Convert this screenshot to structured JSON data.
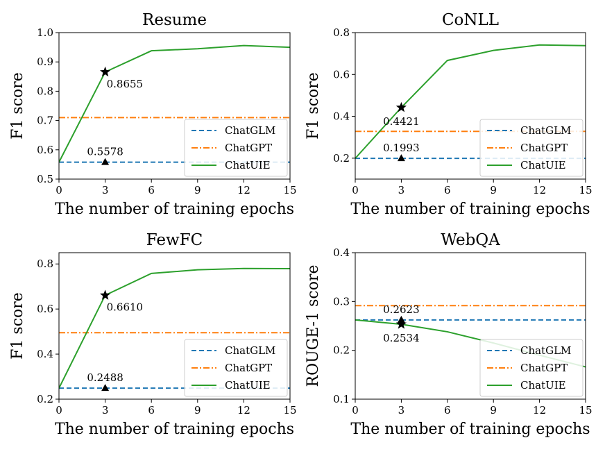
{
  "chart_data": [
    {
      "type": "line",
      "title": "Resume",
      "xlabel": "The number of training epochs",
      "ylabel": "F1 score",
      "xlim": [
        0,
        15
      ],
      "ylim": [
        0.5,
        1.0
      ],
      "xticks": [
        "0",
        "3",
        "6",
        "9",
        "12",
        "15"
      ],
      "yticks": [
        "0.5",
        "0.6",
        "0.7",
        "0.8",
        "0.9",
        "1.0"
      ],
      "legend": "bottom-right",
      "series": [
        {
          "name": "ChatGLM",
          "style": "dashed",
          "color": "#1f77b4",
          "x": [
            0,
            15
          ],
          "y": [
            0.5578,
            0.5578
          ]
        },
        {
          "name": "ChatGPT",
          "style": "dashdot",
          "color": "#ff7f0e",
          "x": [
            0,
            15
          ],
          "y": [
            0.71,
            0.71
          ]
        },
        {
          "name": "ChatUIE",
          "style": "solid",
          "color": "#2ca02c",
          "x": [
            0,
            3,
            6,
            9,
            12,
            15
          ],
          "y": [
            0.5578,
            0.8655,
            0.938,
            0.945,
            0.956,
            0.95
          ]
        }
      ],
      "annotations": [
        {
          "marker": "star",
          "x": 3,
          "y": 0.8655,
          "text": "0.8655",
          "pos": "below-right"
        },
        {
          "marker": "triangle",
          "x": 3,
          "y": 0.5578,
          "text": "0.5578",
          "pos": "above"
        }
      ]
    },
    {
      "type": "line",
      "title": "CoNLL",
      "xlabel": "The number of training epochs",
      "ylabel": "F1 score",
      "xlim": [
        0,
        15
      ],
      "ylim": [
        0.1,
        0.8
      ],
      "xticks": [
        "0",
        "3",
        "6",
        "9",
        "12",
        "15"
      ],
      "yticks": [
        "0.2",
        "0.4",
        "0.6",
        "0.8"
      ],
      "legend": "bottom-right",
      "series": [
        {
          "name": "ChatGLM",
          "style": "dashed",
          "color": "#1f77b4",
          "x": [
            0,
            15
          ],
          "y": [
            0.1993,
            0.1993
          ]
        },
        {
          "name": "ChatGPT",
          "style": "dashdot",
          "color": "#ff7f0e",
          "x": [
            0,
            15
          ],
          "y": [
            0.328,
            0.328
          ]
        },
        {
          "name": "ChatUIE",
          "style": "solid",
          "color": "#2ca02c",
          "x": [
            0,
            3,
            6,
            9,
            12,
            15
          ],
          "y": [
            0.1993,
            0.4421,
            0.667,
            0.715,
            0.741,
            0.738
          ]
        }
      ],
      "annotations": [
        {
          "marker": "star",
          "x": 3,
          "y": 0.4421,
          "text": "0.4421",
          "pos": "below"
        },
        {
          "marker": "triangle",
          "x": 3,
          "y": 0.1993,
          "text": "0.1993",
          "pos": "above"
        }
      ]
    },
    {
      "type": "line",
      "title": "FewFC",
      "xlabel": "The number of training epochs",
      "ylabel": "F1 score",
      "xlim": [
        0,
        15
      ],
      "ylim": [
        0.2,
        0.85
      ],
      "xticks": [
        "0",
        "3",
        "6",
        "9",
        "12",
        "15"
      ],
      "yticks": [
        "0.2",
        "0.4",
        "0.6",
        "0.8"
      ],
      "legend": "bottom-right",
      "series": [
        {
          "name": "ChatGLM",
          "style": "dashed",
          "color": "#1f77b4",
          "x": [
            0,
            15
          ],
          "y": [
            0.2488,
            0.2488
          ]
        },
        {
          "name": "ChatGPT",
          "style": "dashdot",
          "color": "#ff7f0e",
          "x": [
            0,
            15
          ],
          "y": [
            0.495,
            0.495
          ]
        },
        {
          "name": "ChatUIE",
          "style": "solid",
          "color": "#2ca02c",
          "x": [
            0,
            3,
            6,
            9,
            12,
            15
          ],
          "y": [
            0.2488,
            0.661,
            0.758,
            0.774,
            0.78,
            0.779
          ]
        }
      ],
      "annotations": [
        {
          "marker": "star",
          "x": 3,
          "y": 0.661,
          "text": "0.6610",
          "pos": "below-right"
        },
        {
          "marker": "triangle",
          "x": 3,
          "y": 0.2488,
          "text": "0.2488",
          "pos": "above"
        }
      ]
    },
    {
      "type": "line",
      "title": "WebQA",
      "xlabel": "The number of training epochs",
      "ylabel": "ROUGE-1 score",
      "xlim": [
        0,
        15
      ],
      "ylim": [
        0.1,
        0.4
      ],
      "xticks": [
        "0",
        "3",
        "6",
        "9",
        "12",
        "15"
      ],
      "yticks": [
        "0.1",
        "0.2",
        "0.3",
        "0.4"
      ],
      "legend": "bottom-right",
      "series": [
        {
          "name": "ChatGLM",
          "style": "dashed",
          "color": "#1f77b4",
          "x": [
            0,
            15
          ],
          "y": [
            0.2623,
            0.2623
          ]
        },
        {
          "name": "ChatGPT",
          "style": "dashdot",
          "color": "#ff7f0e",
          "x": [
            0,
            15
          ],
          "y": [
            0.2915,
            0.2915
          ]
        },
        {
          "name": "ChatUIE",
          "style": "solid",
          "color": "#2ca02c",
          "x": [
            0,
            3,
            6,
            9,
            12,
            15
          ],
          "y": [
            0.2623,
            0.2534,
            0.238,
            0.215,
            0.19,
            0.166
          ]
        }
      ],
      "annotations": [
        {
          "marker": "triangle",
          "x": 3,
          "y": 0.2623,
          "text": "0.2623",
          "pos": "above"
        },
        {
          "marker": "star",
          "x": 3,
          "y": 0.2534,
          "text": "0.2534",
          "pos": "below"
        }
      ]
    }
  ]
}
